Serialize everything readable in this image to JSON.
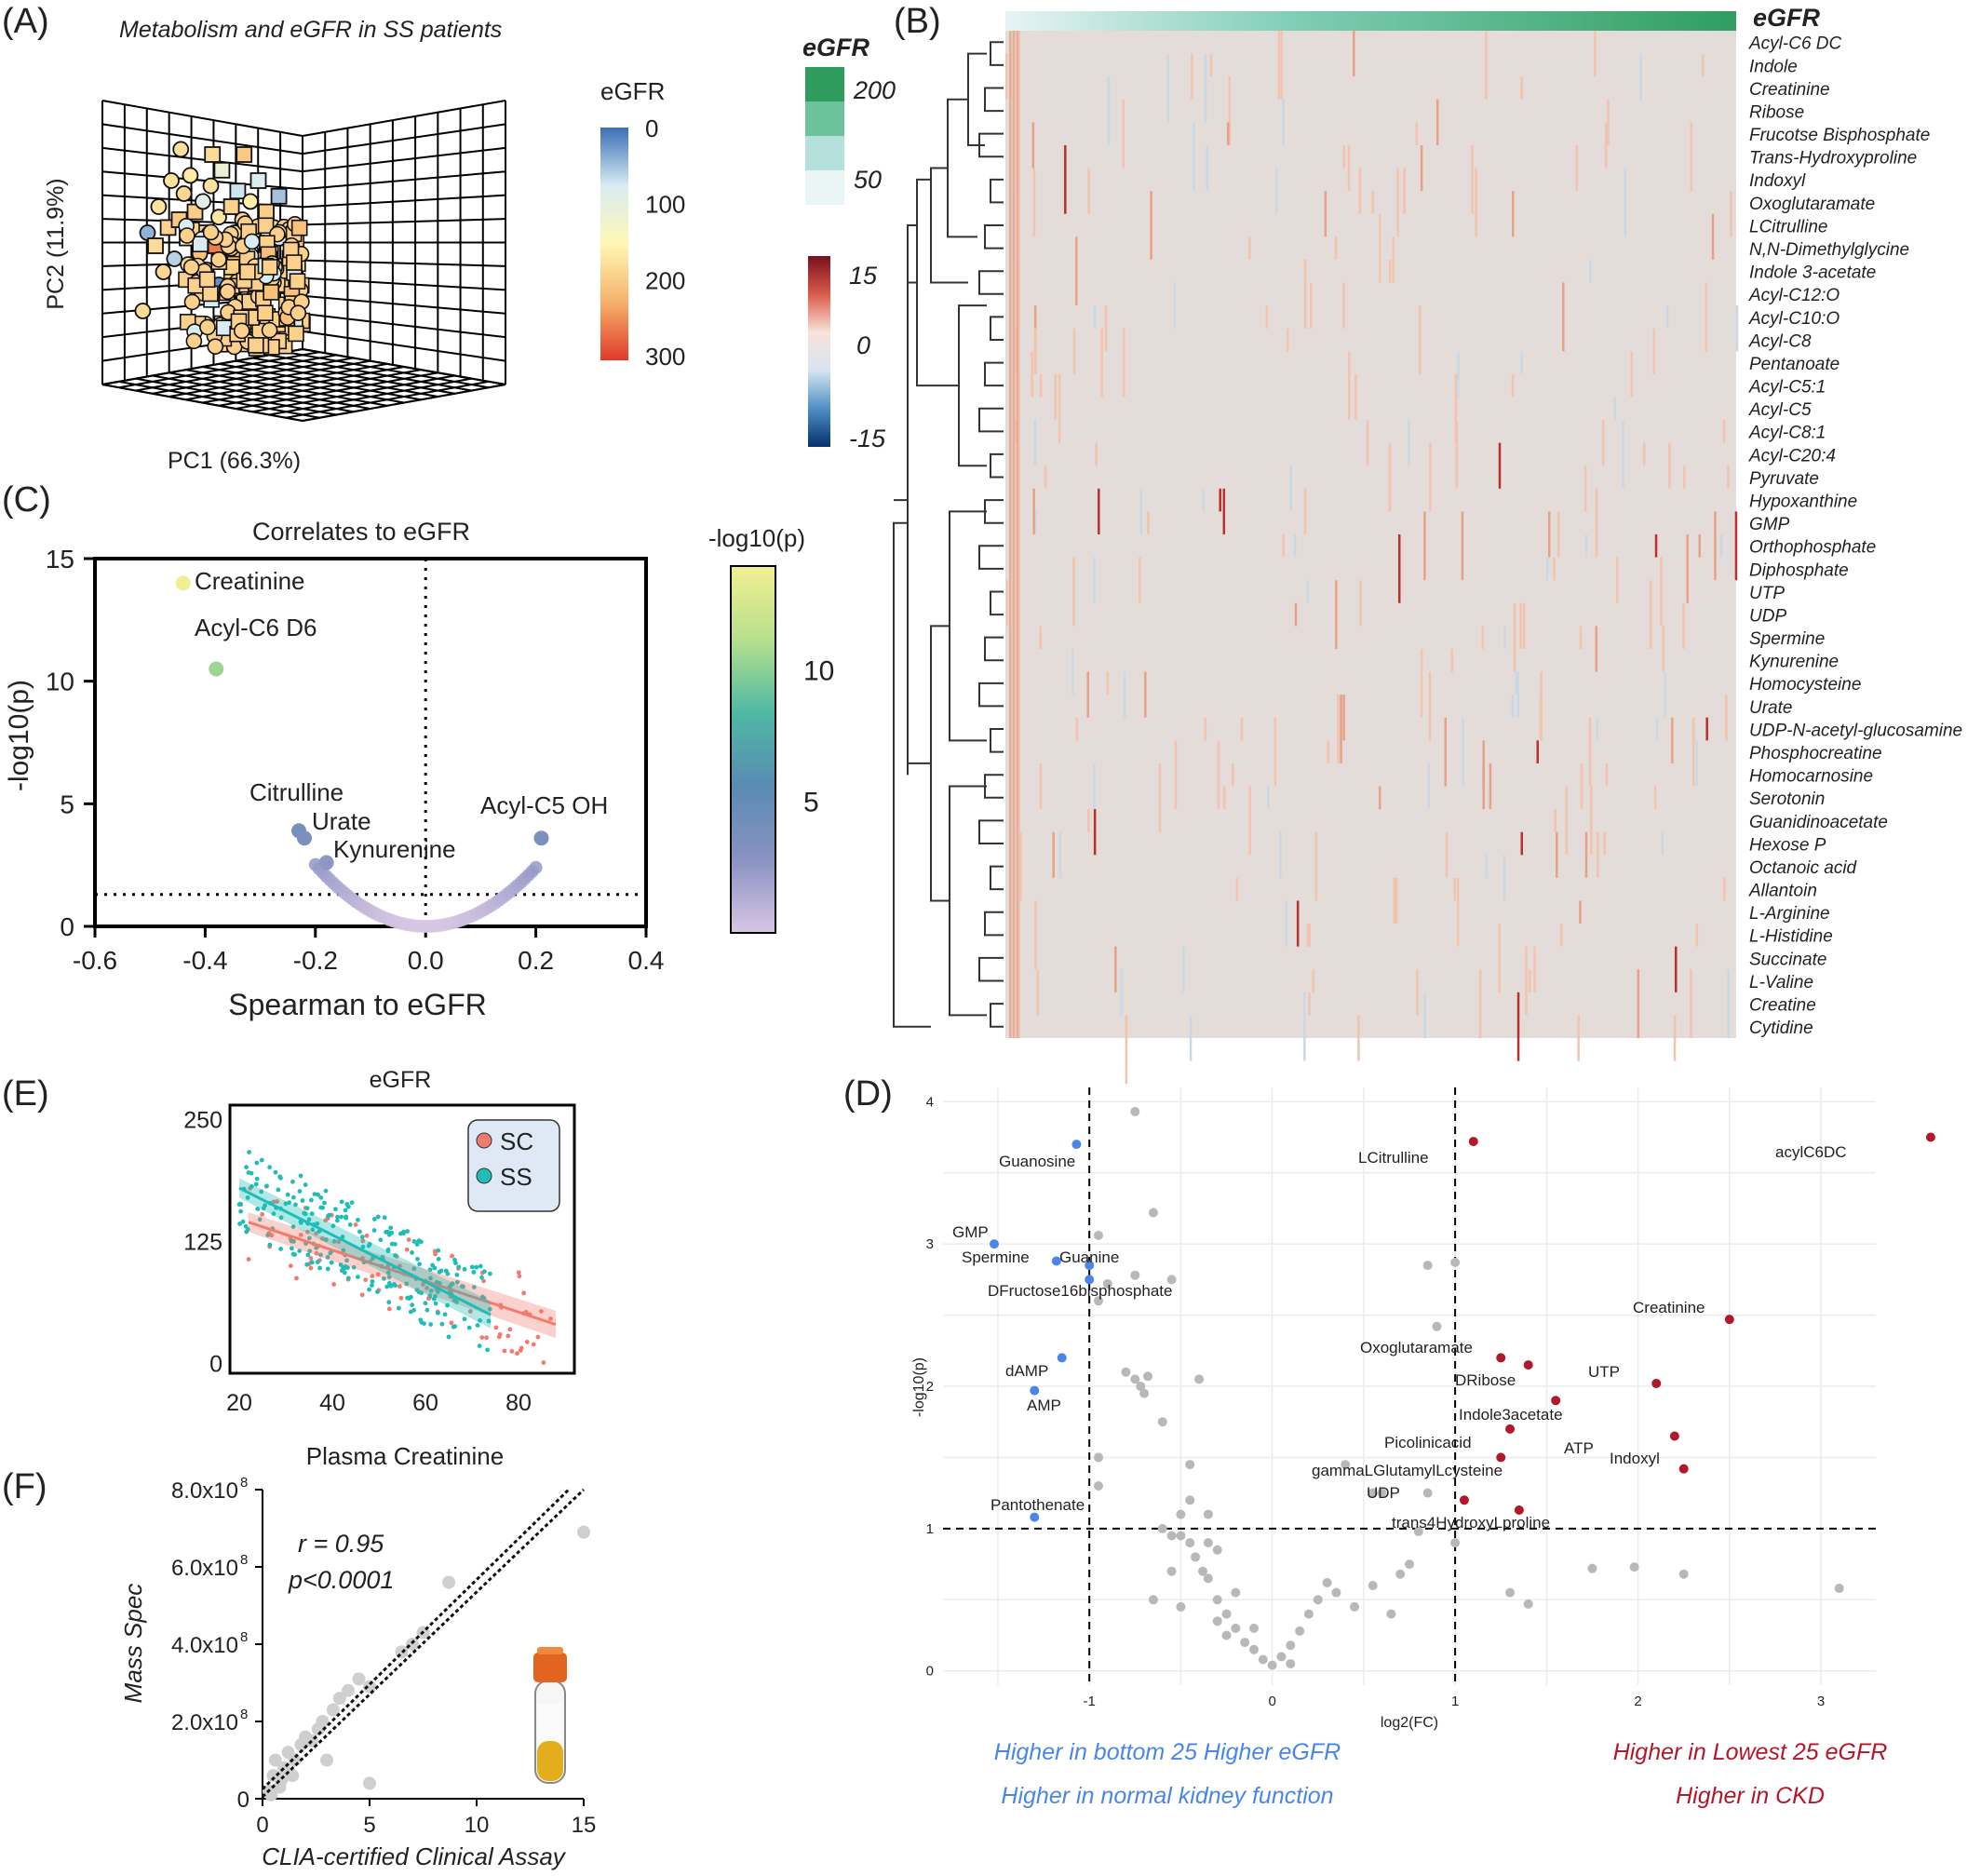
{
  "panels": {
    "A": "(A)",
    "B": "(B)",
    "C": "(C)",
    "D": "(D)",
    "E": "(E)",
    "F": "(F)"
  },
  "chart_data": [
    {
      "id": "A",
      "type": "scatter",
      "title": "Metabolism and eGFR in SS patients",
      "xlabel": "PC1 (66.3%)",
      "ylabel": "PC2 (11.9%)",
      "colorbar": {
        "title": "eGFR",
        "ticks": [
          0,
          100,
          200,
          300
        ],
        "colors": [
          "#3b6fb6",
          "#d8ecf2",
          "#fff7b3",
          "#f6b26b",
          "#e03a2a"
        ]
      },
      "points": [
        {
          "x": 0.05,
          "y": 0.5,
          "egfr": 40,
          "shape": "circle"
        },
        {
          "x": 0.1,
          "y": 0.45,
          "egfr": 180,
          "shape": "square"
        },
        {
          "x": 0.12,
          "y": 0.6,
          "egfr": 170,
          "shape": "circle"
        },
        {
          "x": 0.18,
          "y": 0.52,
          "egfr": 190,
          "shape": "square"
        },
        {
          "x": 0.2,
          "y": 0.7,
          "egfr": 175,
          "shape": "circle"
        },
        {
          "x": 0.22,
          "y": 0.4,
          "egfr": 60,
          "shape": "circle"
        },
        {
          "x": 0.25,
          "y": 0.55,
          "egfr": 200,
          "shape": "square"
        },
        {
          "x": 0.28,
          "y": 0.65,
          "egfr": 185,
          "shape": "circle"
        },
        {
          "x": 0.3,
          "y": 0.48,
          "egfr": 120,
          "shape": "square"
        },
        {
          "x": 0.32,
          "y": 0.72,
          "egfr": 165,
          "shape": "circle"
        },
        {
          "x": 0.35,
          "y": 0.58,
          "egfr": 195,
          "shape": "square"
        },
        {
          "x": 0.38,
          "y": 0.42,
          "egfr": 210,
          "shape": "circle"
        },
        {
          "x": 0.4,
          "y": 0.62,
          "egfr": 90,
          "shape": "circle"
        },
        {
          "x": 0.42,
          "y": 0.5,
          "egfr": 180,
          "shape": "square"
        },
        {
          "x": 0.45,
          "y": 0.68,
          "egfr": 175,
          "shape": "circle"
        },
        {
          "x": 0.48,
          "y": 0.45,
          "egfr": 260,
          "shape": "square"
        },
        {
          "x": 0.5,
          "y": 0.56,
          "egfr": 170,
          "shape": "circle"
        },
        {
          "x": 0.52,
          "y": 0.74,
          "egfr": 110,
          "shape": "square"
        },
        {
          "x": 0.55,
          "y": 0.4,
          "egfr": 30,
          "shape": "circle"
        },
        {
          "x": 0.58,
          "y": 0.6,
          "egfr": 190,
          "shape": "square"
        },
        {
          "x": 0.6,
          "y": 0.5,
          "egfr": 180,
          "shape": "circle"
        },
        {
          "x": 0.62,
          "y": 0.66,
          "egfr": 70,
          "shape": "square"
        },
        {
          "x": 0.65,
          "y": 0.55,
          "egfr": 185,
          "shape": "circle"
        },
        {
          "x": 0.68,
          "y": 0.44,
          "egfr": 200,
          "shape": "square"
        },
        {
          "x": 0.7,
          "y": 0.62,
          "egfr": 160,
          "shape": "circle"
        },
        {
          "x": 0.72,
          "y": 0.5,
          "egfr": 190,
          "shape": "circle"
        },
        {
          "x": 0.75,
          "y": 0.7,
          "egfr": 80,
          "shape": "square"
        },
        {
          "x": 0.78,
          "y": 0.46,
          "egfr": 175,
          "shape": "circle"
        },
        {
          "x": 0.8,
          "y": 0.58,
          "egfr": 195,
          "shape": "square"
        },
        {
          "x": 0.85,
          "y": 0.52,
          "egfr": 180,
          "shape": "circle"
        },
        {
          "x": 0.88,
          "y": 0.64,
          "egfr": 50,
          "shape": "square"
        },
        {
          "x": 0.9,
          "y": 0.48,
          "egfr": 170,
          "shape": "circle"
        },
        {
          "x": 0.15,
          "y": 0.35,
          "egfr": 185,
          "shape": "circle"
        },
        {
          "x": 0.36,
          "y": 0.32,
          "egfr": 175,
          "shape": "square"
        },
        {
          "x": 0.6,
          "y": 0.34,
          "egfr": 190,
          "shape": "circle"
        },
        {
          "x": 0.46,
          "y": 0.8,
          "egfr": 180,
          "shape": "square"
        },
        {
          "x": 0.26,
          "y": 0.82,
          "egfr": 175,
          "shape": "circle"
        },
        {
          "x": 0.66,
          "y": 0.8,
          "egfr": 200,
          "shape": "square"
        },
        {
          "x": 0.02,
          "y": 0.2,
          "egfr": 180,
          "shape": "circle"
        },
        {
          "x": 0.5,
          "y": 0.3,
          "egfr": 20,
          "shape": "circle"
        }
      ]
    },
    {
      "id": "B",
      "type": "heatmap",
      "top_label": "eGFR",
      "legend_egfr": {
        "title": "eGFR",
        "ticks": [
          200,
          50
        ],
        "colors": [
          "#2e9c5c",
          "#6cc39b",
          "#b6e0dc",
          "#eaf6f6"
        ]
      },
      "legend_value": {
        "ticks": [
          15,
          0,
          -15
        ],
        "colors": [
          "#7a0f1e",
          "#d95b4b",
          "#f7e3da",
          "#d6e4ef",
          "#4f8fc3",
          "#08306b"
        ]
      },
      "rows": [
        "Acyl-C6 DC",
        "Indole",
        "Creatinine",
        "Ribose",
        "Frucotse Bisphosphate",
        "Trans-Hydroxyproline",
        "Indoxyl",
        "Oxoglutaramate",
        "LCitrulline",
        "N,N-Dimethylglycine",
        "Indole 3-acetate",
        "Acyl-C12:O",
        "Acyl-C10:O",
        "Acyl-C8",
        "Pentanoate",
        "Acyl-C5:1",
        "Acyl-C5",
        "Acyl-C8:1",
        "Acyl-C20:4",
        "Pyruvate",
        "Hypoxanthine",
        "GMP",
        "Orthophosphate",
        "Diphosphate",
        "UTP",
        "UDP",
        "Spermine",
        "Kynurenine",
        "Homocysteine",
        "Urate",
        "UDP-N-acetyl-glucosamine",
        "Phosphocreatine",
        "Homocarnosine",
        "Serotonin",
        "Guanidinoacetate",
        "Hexose P",
        "Octanoic acid",
        "Allantoin",
        "L-Arginine",
        "L-Histidine",
        "Succinate",
        "L-Valine",
        "Creatine",
        "Cytidine"
      ]
    },
    {
      "id": "C",
      "type": "scatter",
      "title": "Correlates to eGFR",
      "xlabel": "Spearman to eGFR",
      "ylabel": "-log10(p)",
      "xlim": [
        -0.6,
        0.4
      ],
      "ylim": [
        0,
        15
      ],
      "xticks": [
        -0.6,
        -0.4,
        -0.2,
        0.0,
        0.2,
        0.4
      ],
      "xtick_labels": [
        "-0.6",
        "-0.4",
        "-0.2",
        "0.0",
        "0.2",
        "0.4"
      ],
      "yticks": [
        0,
        5,
        10,
        15
      ],
      "threshold_y": 1.3,
      "colorbar": {
        "title": "-log10(p)",
        "ticks": [
          5,
          10
        ],
        "range": [
          0,
          14
        ],
        "colors": [
          "#d7c6e4",
          "#8a92c2",
          "#5a8bb3",
          "#4fb8a5",
          "#b7e08c",
          "#f2ef93"
        ]
      },
      "labeled_points": [
        {
          "label": "Creatinine",
          "x": -0.44,
          "y": 14.0
        },
        {
          "label": "Acyl-C6 D6",
          "x": -0.38,
          "y": 10.5
        },
        {
          "label": "Citrulline",
          "x": -0.23,
          "y": 3.9
        },
        {
          "label": "Urate",
          "x": -0.22,
          "y": 3.6
        },
        {
          "label": "Kynurenine",
          "x": -0.18,
          "y": 2.6
        },
        {
          "label": "Acyl-C5 OH",
          "x": 0.21,
          "y": 3.6
        }
      ]
    },
    {
      "id": "D",
      "type": "scatter",
      "xlabel": "log2(FC)",
      "ylabel": "-log10(p)",
      "xlim": [
        -1.8,
        3.3
      ],
      "ylim": [
        -0.1,
        4.1
      ],
      "xticks": [
        -1,
        0,
        1,
        2,
        3
      ],
      "yticks": [
        0,
        1,
        2,
        3,
        4
      ],
      "vlines": [
        -1,
        1
      ],
      "hline": 1,
      "colors": {
        "low": "#4a86e8",
        "high": "#b2182b",
        "ns": "#b8b8b8"
      },
      "blue_points": [
        {
          "label": "Guanosine",
          "x": -1.07,
          "y": 3.7
        },
        {
          "label": "GMP",
          "x": -1.52,
          "y": 3.0
        },
        {
          "label": "Spermine",
          "x": -1.18,
          "y": 2.88
        },
        {
          "label": "Guanine",
          "x": -1.0,
          "y": 2.85
        },
        {
          "label": "DFructose16bisphosphate",
          "x": -1.0,
          "y": 2.75
        },
        {
          "label": "dAMP",
          "x": -1.15,
          "y": 2.2
        },
        {
          "label": "AMP",
          "x": -1.3,
          "y": 1.97
        },
        {
          "label": "Pantothenate",
          "x": -1.3,
          "y": 1.08
        }
      ],
      "red_points": [
        {
          "label": "LCitrulline",
          "x": 1.1,
          "y": 3.72
        },
        {
          "label": "acylC6DC",
          "x": 3.6,
          "y": 3.75
        },
        {
          "label": "Creatinine",
          "x": 2.5,
          "y": 2.47
        },
        {
          "label": "Oxoglutaramate",
          "x": 1.25,
          "y": 2.2
        },
        {
          "label": "DRibose",
          "x": 1.4,
          "y": 2.15
        },
        {
          "label": "UTP",
          "x": 2.1,
          "y": 2.02
        },
        {
          "label": "Indole3acetate",
          "x": 1.55,
          "y": 1.9
        },
        {
          "label": "Picolinicacid",
          "x": 1.3,
          "y": 1.7
        },
        {
          "label": "ATP",
          "x": 2.2,
          "y": 1.65
        },
        {
          "label": "Indoxyl",
          "x": 2.25,
          "y": 1.42
        },
        {
          "label": "gammaLGlutamylLcysteine",
          "x": 1.25,
          "y": 1.5
        },
        {
          "label": "UDP",
          "x": 1.05,
          "y": 1.2
        },
        {
          "label": "trans4HydroxyLproline",
          "x": 1.35,
          "y": 1.13
        }
      ],
      "grey_points": [
        {
          "x": -0.75,
          "y": 3.93
        },
        {
          "x": -0.65,
          "y": 3.22
        },
        {
          "x": -0.95,
          "y": 3.06
        },
        {
          "x": -0.55,
          "y": 2.75
        },
        {
          "x": -0.75,
          "y": 2.78
        },
        {
          "x": -0.9,
          "y": 2.72
        },
        {
          "x": -0.95,
          "y": 2.6
        },
        {
          "x": -0.8,
          "y": 2.1
        },
        {
          "x": -0.75,
          "y": 2.05
        },
        {
          "x": -0.72,
          "y": 2.0
        },
        {
          "x": -0.7,
          "y": 1.95
        },
        {
          "x": -0.68,
          "y": 2.07
        },
        {
          "x": -0.4,
          "y": 2.05
        },
        {
          "x": -0.95,
          "y": 1.5
        },
        {
          "x": -0.95,
          "y": 1.3
        },
        {
          "x": -0.6,
          "y": 1.0
        },
        {
          "x": -0.55,
          "y": 0.95
        },
        {
          "x": -0.5,
          "y": 1.1
        },
        {
          "x": -0.45,
          "y": 0.9
        },
        {
          "x": -0.42,
          "y": 0.8
        },
        {
          "x": -0.38,
          "y": 0.7
        },
        {
          "x": -0.35,
          "y": 0.65
        },
        {
          "x": -0.3,
          "y": 0.5
        },
        {
          "x": -0.25,
          "y": 0.4
        },
        {
          "x": -0.2,
          "y": 0.3
        },
        {
          "x": -0.15,
          "y": 0.2
        },
        {
          "x": -0.1,
          "y": 0.15
        },
        {
          "x": -0.05,
          "y": 0.08
        },
        {
          "x": 0.0,
          "y": 0.04
        },
        {
          "x": 0.05,
          "y": 0.1
        },
        {
          "x": 0.1,
          "y": 0.18
        },
        {
          "x": 0.15,
          "y": 0.28
        },
        {
          "x": 0.2,
          "y": 0.4
        },
        {
          "x": 0.25,
          "y": 0.5
        },
        {
          "x": 0.3,
          "y": 0.62
        },
        {
          "x": 0.35,
          "y": 0.55
        },
        {
          "x": 0.45,
          "y": 0.45
        },
        {
          "x": 0.55,
          "y": 0.6
        },
        {
          "x": 0.65,
          "y": 0.4
        },
        {
          "x": -0.55,
          "y": 0.7
        },
        {
          "x": -0.65,
          "y": 0.5
        },
        {
          "x": -0.5,
          "y": 0.45
        },
        {
          "x": -0.6,
          "y": 1.75
        },
        {
          "x": -0.45,
          "y": 1.45
        },
        {
          "x": -0.35,
          "y": 1.1
        },
        {
          "x": -0.3,
          "y": 0.85
        },
        {
          "x": -0.2,
          "y": 0.55
        },
        {
          "x": -0.1,
          "y": 0.3
        },
        {
          "x": 0.4,
          "y": 1.45
        },
        {
          "x": 0.55,
          "y": 1.25
        },
        {
          "x": 0.6,
          "y": 1.25
        },
        {
          "x": 0.85,
          "y": 1.25
        },
        {
          "x": 0.9,
          "y": 2.42
        },
        {
          "x": 0.85,
          "y": 2.85
        },
        {
          "x": 1.0,
          "y": 2.87
        },
        {
          "x": 0.8,
          "y": 0.98
        },
        {
          "x": 0.75,
          "y": 0.75
        },
        {
          "x": 0.7,
          "y": 0.68
        },
        {
          "x": 1.0,
          "y": 0.9
        },
        {
          "x": 1.3,
          "y": 0.55
        },
        {
          "x": 1.4,
          "y": 0.47
        },
        {
          "x": 1.75,
          "y": 0.72
        },
        {
          "x": 1.98,
          "y": 0.73
        },
        {
          "x": 2.25,
          "y": 0.68
        },
        {
          "x": 3.1,
          "y": 0.58
        },
        {
          "x": -0.25,
          "y": 0.25
        },
        {
          "x": -0.3,
          "y": 0.35
        },
        {
          "x": 0.1,
          "y": 0.05
        },
        {
          "x": -0.45,
          "y": 1.2
        },
        {
          "x": -0.5,
          "y": 0.95
        },
        {
          "x": -0.35,
          "y": 0.9
        }
      ],
      "left_notes": [
        "Higher in bottom 25 Higher eGFR",
        "Higher in normal kidney function"
      ],
      "right_notes": [
        "Higher in Lowest 25 eGFR",
        "Higher in CKD"
      ]
    },
    {
      "id": "E",
      "type": "scatter",
      "title": "eGFR",
      "xlim": [
        18,
        92
      ],
      "ylim": [
        -10,
        265
      ],
      "xticks": [
        20,
        40,
        60,
        80
      ],
      "yticks": [
        0,
        125,
        250
      ],
      "series": [
        {
          "name": "SC",
          "color": "#f17c6e",
          "fit": [
            [
              22,
              145
            ],
            [
              88,
              40
            ]
          ]
        },
        {
          "name": "SS",
          "color": "#1fbdb7",
          "fit": [
            [
              20,
              180
            ],
            [
              74,
              50
            ]
          ]
        }
      ]
    },
    {
      "id": "F",
      "type": "scatter",
      "title": "Plasma Creatinine",
      "xlabel": "CLIA-certified Clinical Assay",
      "ylabel": "Mass Spec",
      "xlim": [
        0,
        15
      ],
      "ylim": [
        0,
        800000000.0
      ],
      "xticks": [
        0,
        5,
        10,
        15
      ],
      "yticks": [
        0,
        200000000.0,
        400000000.0,
        600000000.0,
        800000000.0
      ],
      "ytick_labels": [
        "0",
        "2.0x10",
        "4.0x10",
        "6.0x10",
        "8.0x10"
      ],
      "ytick_exp": "8",
      "annotation": {
        "r": "r = 0.95",
        "p": "p<0.0001"
      },
      "points": [
        {
          "x": 0.3,
          "y": 20000000.0
        },
        {
          "x": 0.5,
          "y": 60000000.0
        },
        {
          "x": 0.6,
          "y": 100000000.0
        },
        {
          "x": 0.8,
          "y": 30000000.0
        },
        {
          "x": 1.0,
          "y": 80000000.0
        },
        {
          "x": 1.2,
          "y": 120000000.0
        },
        {
          "x": 1.5,
          "y": 100000000.0
        },
        {
          "x": 1.8,
          "y": 140000000.0
        },
        {
          "x": 2.0,
          "y": 160000000.0
        },
        {
          "x": 2.3,
          "y": 150000000.0
        },
        {
          "x": 2.6,
          "y": 180000000.0
        },
        {
          "x": 3.0,
          "y": 100000000.0
        },
        {
          "x": 3.3,
          "y": 230000000.0
        },
        {
          "x": 4.0,
          "y": 280000000.0
        },
        {
          "x": 4.5,
          "y": 310000000.0
        },
        {
          "x": 5.0,
          "y": 40000000.0
        },
        {
          "x": 5.0,
          "y": 290000000.0
        },
        {
          "x": 6.5,
          "y": 380000000.0
        },
        {
          "x": 7.0,
          "y": 400000000.0
        },
        {
          "x": 7.5,
          "y": 430000000.0
        },
        {
          "x": 8.7,
          "y": 560000000.0
        },
        {
          "x": 15.0,
          "y": 690000000.0
        },
        {
          "x": 0.4,
          "y": 10000000.0
        },
        {
          "x": 1.4,
          "y": 60000000.0
        },
        {
          "x": 0.9,
          "y": 50000000.0
        },
        {
          "x": 2.8,
          "y": 200000000.0
        },
        {
          "x": 3.6,
          "y": 260000000.0
        }
      ]
    }
  ]
}
